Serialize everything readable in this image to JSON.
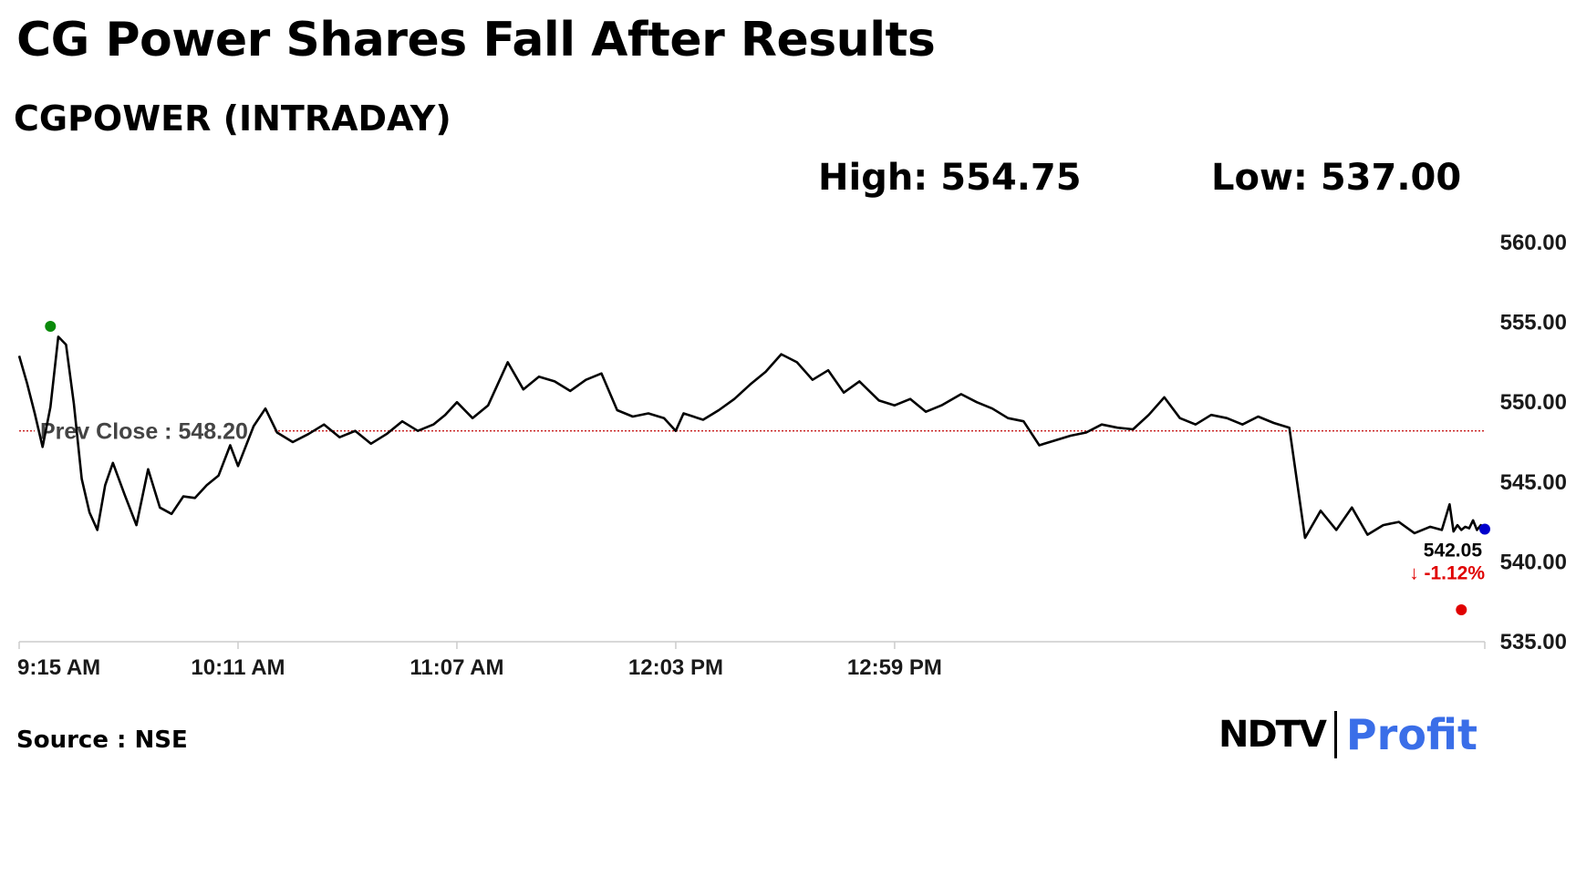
{
  "title": "CG Power Shares Fall After Results",
  "subtitle": "CGPOWER (INTRADAY)",
  "stats": {
    "high": "High: 554.75",
    "low": "Low: 537.00"
  },
  "source": "Source : NSE",
  "logo": {
    "ndtv": "NDTV",
    "profit": "Profit"
  },
  "colors": {
    "line": "#000000",
    "prev_close": "#c00000",
    "high_marker": "#0a8a0a",
    "low_marker": "#e00000",
    "last_marker": "#0000cc",
    "change_negative": "#e00000",
    "axis": "#cccccc"
  },
  "chart_data": {
    "type": "line",
    "title": "CGPOWER (INTRADAY)",
    "xlabel": "",
    "ylabel": "",
    "ylim": [
      535,
      560
    ],
    "x_ticks": [
      "9:15 AM",
      "10:11 AM",
      "11:07 AM",
      "12:03 PM",
      "12:59 PM"
    ],
    "y_ticks": [
      "560.00",
      "555.00",
      "550.00",
      "545.00",
      "540.00",
      "535.00"
    ],
    "y_tick_values": [
      560,
      555,
      550,
      545,
      540,
      535
    ],
    "x_start": "9:15 AM",
    "x_end": "3:30 PM",
    "prev_close": {
      "label": "Prev Close : 548.20",
      "value": 548.2
    },
    "high": {
      "time": "9:23 AM",
      "value": 554.75
    },
    "low": {
      "time": "3:24 PM",
      "value": 537.0
    },
    "last": {
      "time": "3:30 PM",
      "value": 542.05,
      "label": "542.05",
      "change": "↓ -1.12%"
    },
    "grid": false,
    "series": [
      {
        "x": [
          "9:15 AM",
          "9:17 AM",
          "9:19 AM",
          "9:21 AM",
          "9:23 AM",
          "9:25 AM",
          "9:27 AM",
          "9:29 AM",
          "9:31 AM",
          "9:33 AM",
          "9:35 AM",
          "9:37 AM",
          "9:39 AM",
          "9:42 AM",
          "9:45 AM",
          "9:48 AM",
          "9:51 AM",
          "9:54 AM",
          "9:57 AM",
          "10:00 AM",
          "10:03 AM",
          "10:06 AM",
          "10:09 AM",
          "10:11 AM",
          "10:15 AM",
          "10:18 AM",
          "10:21 AM",
          "10:25 AM",
          "10:29 AM",
          "10:33 AM",
          "10:37 AM",
          "10:41 AM",
          "10:45 AM",
          "10:49 AM",
          "10:53 AM",
          "10:57 AM",
          "11:01 AM",
          "11:04 AM",
          "11:07 AM",
          "11:11 AM",
          "11:15 AM",
          "11:20 AM",
          "11:24 AM",
          "11:28 AM",
          "11:32 AM",
          "11:36 AM",
          "11:40 AM",
          "11:44 AM",
          "11:48 AM",
          "11:52 AM",
          "11:56 AM",
          "12:00 PM",
          "12:03 PM",
          "12:05 PM",
          "12:10 PM",
          "12:14 PM",
          "12:18 PM",
          "12:22 PM",
          "12:26 PM",
          "12:30 PM",
          "12:34 PM",
          "12:38 PM",
          "12:42 PM",
          "12:46 PM",
          "12:50 PM",
          "12:55 PM",
          "12:59 PM",
          "1:03 PM",
          "1:07 PM",
          "1:11 PM",
          "1:16 PM",
          "1:20 PM",
          "1:24 PM",
          "1:28 PM",
          "1:32 PM",
          "1:36 PM",
          "1:40 PM",
          "1:44 PM",
          "1:48 PM",
          "1:52 PM",
          "1:56 PM",
          "2:00 PM",
          "2:04 PM",
          "2:08 PM",
          "2:12 PM",
          "2:16 PM",
          "2:20 PM",
          "2:24 PM",
          "2:28 PM",
          "2:32 PM",
          "2:36 PM",
          "2:40 PM",
          "2:44 PM",
          "2:48 PM",
          "2:52 PM",
          "2:56 PM",
          "3:00 PM",
          "3:04 PM",
          "3:08 PM",
          "3:12 PM",
          "3:16 PM",
          "3:19 PM",
          "3:21 PM",
          "3:22 PM",
          "3:23 PM",
          "3:24 PM",
          "3:25 PM",
          "3:26 PM",
          "3:27 PM",
          "3:28 PM",
          "3:29 PM",
          "3:30 PM"
        ],
        "y": [
          552.9,
          551.2,
          549.3,
          547.2,
          549.7,
          554.1,
          553.6,
          549.9,
          545.2,
          543.1,
          542.0,
          544.8,
          546.2,
          544.2,
          542.3,
          545.8,
          543.4,
          543.0,
          544.1,
          544.0,
          544.8,
          545.4,
          547.3,
          546.0,
          548.5,
          549.6,
          548.1,
          547.5,
          548.0,
          548.6,
          547.8,
          548.2,
          547.4,
          548.0,
          548.8,
          548.2,
          548.6,
          549.2,
          550.0,
          549.0,
          549.8,
          552.5,
          550.8,
          551.6,
          551.3,
          550.7,
          551.4,
          551.8,
          549.5,
          549.1,
          549.3,
          549.0,
          548.2,
          549.3,
          548.9,
          549.5,
          550.2,
          551.1,
          551.9,
          553.0,
          552.5,
          551.4,
          552.0,
          550.6,
          551.3,
          550.1,
          549.8,
          550.2,
          549.4,
          549.8,
          550.5,
          550.0,
          549.6,
          549.0,
          548.8,
          547.3,
          547.6,
          547.9,
          548.1,
          548.6,
          548.4,
          548.3,
          549.2,
          550.3,
          549.0,
          548.6,
          549.2,
          549.0,
          548.6,
          549.1,
          548.7,
          548.4,
          541.5,
          543.2,
          542.0,
          543.4,
          541.7,
          542.3,
          542.5,
          541.8,
          542.2,
          542.0,
          543.6,
          541.9,
          542.3,
          542.0,
          542.2,
          542.1,
          542.6,
          542.0,
          542.3,
          542.05
        ]
      }
    ]
  }
}
